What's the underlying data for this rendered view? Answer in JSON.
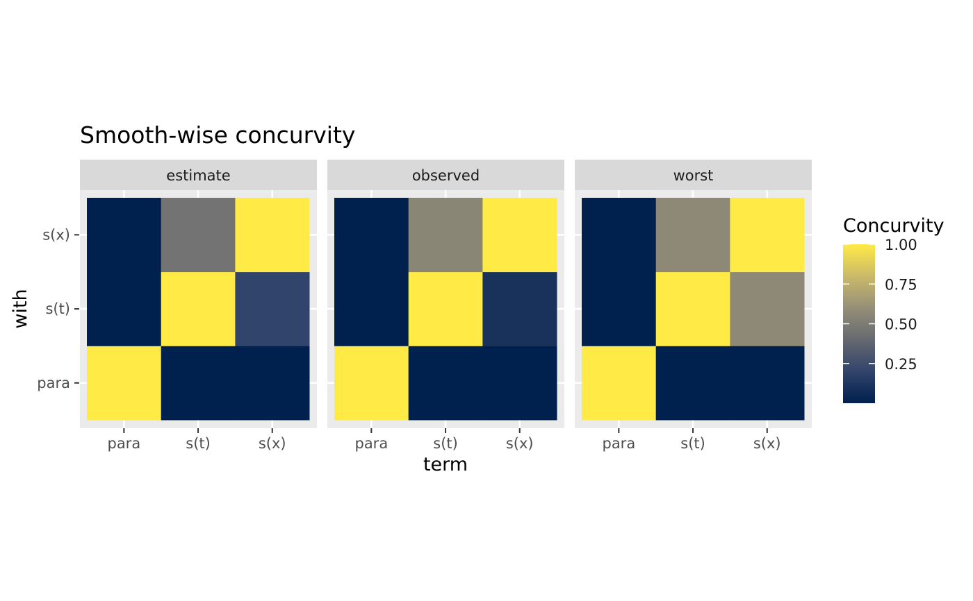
{
  "chart_data": {
    "type": "heatmap",
    "title": "Smooth-wise concurvity",
    "xlabel": "term",
    "ylabel": "with",
    "x_categories": [
      "para",
      "s(t)",
      "s(x)"
    ],
    "y_categories": [
      "para",
      "s(t)",
      "s(x)"
    ],
    "panels": [
      {
        "name": "estimate",
        "rows": {
          "s(x)": [
            0.0,
            0.45,
            1.0
          ],
          "s(t)": [
            0.0,
            1.0,
            0.2
          ],
          "para": [
            1.0,
            0.0,
            0.0
          ]
        }
      },
      {
        "name": "observed",
        "rows": {
          "s(x)": [
            0.0,
            0.55,
            1.0
          ],
          "s(t)": [
            0.0,
            1.0,
            0.1
          ],
          "para": [
            1.0,
            0.0,
            0.0
          ]
        }
      },
      {
        "name": "worst",
        "rows": {
          "s(x)": [
            0.0,
            0.57,
            1.0
          ],
          "s(t)": [
            0.0,
            1.0,
            0.57
          ],
          "para": [
            1.0,
            0.0,
            0.0
          ]
        }
      }
    ],
    "legend": {
      "title": "Concurvity",
      "placement": "right",
      "breaks": [
        1.0,
        0.75,
        0.5,
        0.25
      ],
      "labels": [
        "1.00",
        "0.75",
        "0.50",
        "0.25"
      ],
      "range": [
        0.0,
        1.0
      ]
    },
    "colorscale": [
      "#00204D",
      "#31446B",
      "#666970",
      "#958F78",
      "#CBBA69",
      "#FFEA46"
    ],
    "panel_background": "#EBEBEB",
    "strip_background": "#D9D9D9",
    "grid": true
  }
}
